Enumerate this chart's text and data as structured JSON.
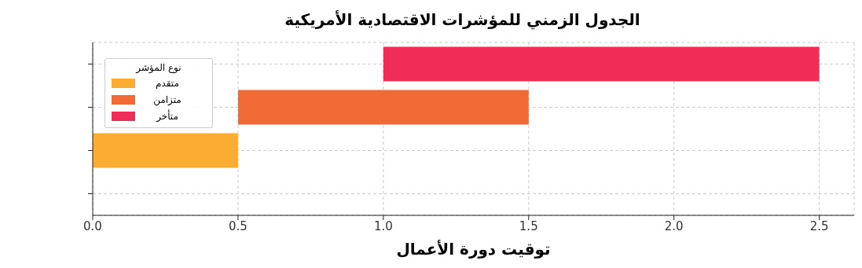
{
  "chart_data": {
    "type": "bar",
    "orientation": "horizontal",
    "title": "الجدول الزمني للمؤشرات الاقتصادية الأمريكية",
    "xlabel": "توقيت دورة الأعمال",
    "legend_title": "نوع المؤشر",
    "categories": [
      null,
      null,
      null,
      null
    ],
    "series": [
      {
        "name": "متقدم",
        "color": "#fbad33",
        "values": [
          null,
          null,
          0.5,
          null
        ],
        "base": [
          null,
          null,
          0,
          null
        ]
      },
      {
        "name": "متزامن",
        "color": "#f06a35",
        "values": [
          null,
          1,
          null,
          null
        ],
        "base": [
          null,
          0.5,
          null,
          null
        ]
      },
      {
        "name": "متأخر",
        "color": "#ef2d56",
        "values": [
          1.5,
          null,
          null,
          null
        ],
        "base": [
          1,
          null,
          null,
          null
        ]
      }
    ],
    "xlim": [
      0,
      2.62
    ],
    "xticks": [
      {
        "value": 0,
        "label": "0.0"
      },
      0.5,
      {
        "value": 1,
        "label": "1.0"
      },
      1.5,
      {
        "value": 2,
        "label": "2.0"
      },
      2.5
    ],
    "grid": true,
    "legend": "top left",
    "tick_labels": "x"
  }
}
